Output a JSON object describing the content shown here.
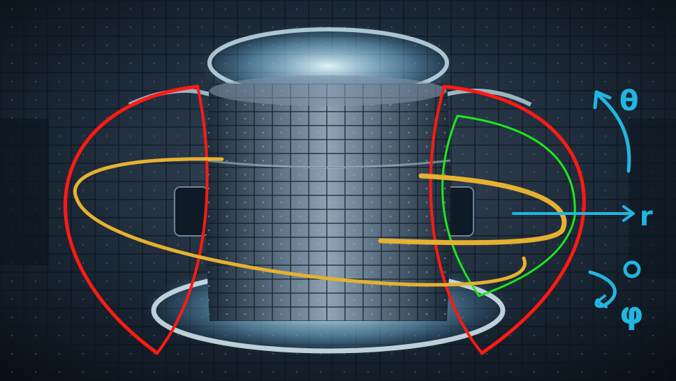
{
  "photo": {
    "subject": "tokamak-interior",
    "colors": {
      "background": "#0b1520",
      "wall": "#2a3947",
      "glow": "#cfefff",
      "flux_surface": "#ff1a12",
      "poloidal_arc": "#1ee61e",
      "toroidal_path": "#e6b131",
      "axis_ink": "#21b6e0"
    }
  },
  "annotations": {
    "theta_label": "θ",
    "r_label": "r",
    "phi_label": "φ"
  }
}
